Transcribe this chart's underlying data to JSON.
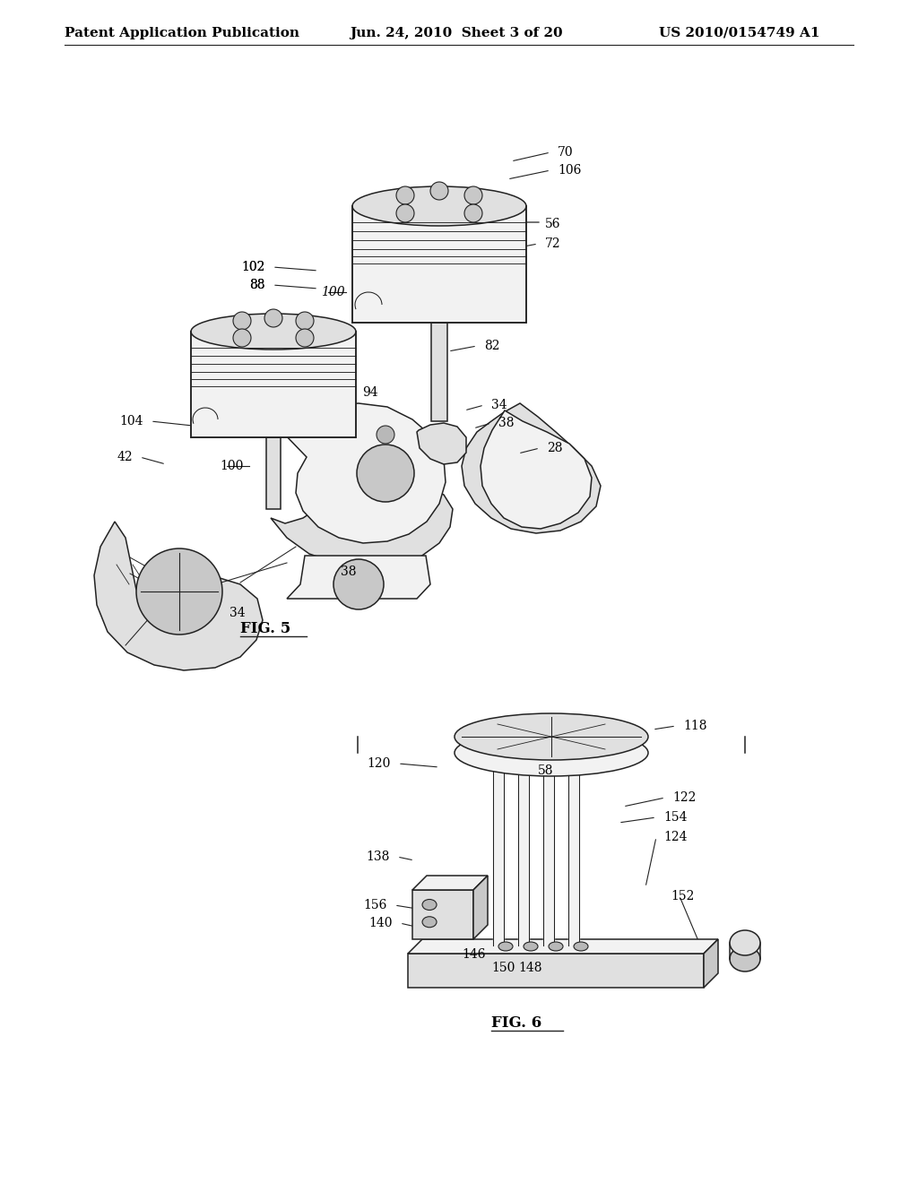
{
  "bg_color": "#ffffff",
  "header_left": "Patent Application Publication",
  "header_center": "Jun. 24, 2010  Sheet 3 of 20",
  "header_right": "US 2010/0154749 A1",
  "fig5_label": "FIG. 5",
  "fig6_label": "FIG. 6",
  "header_fontsize": 11,
  "fig_label_fontsize": 12,
  "annotation_fontsize": 10,
  "line_color": "#222222",
  "face_light": "#f2f2f2",
  "face_mid": "#e0e0e0",
  "face_dark": "#c8c8c8",
  "face_darker": "#b8b8b8"
}
